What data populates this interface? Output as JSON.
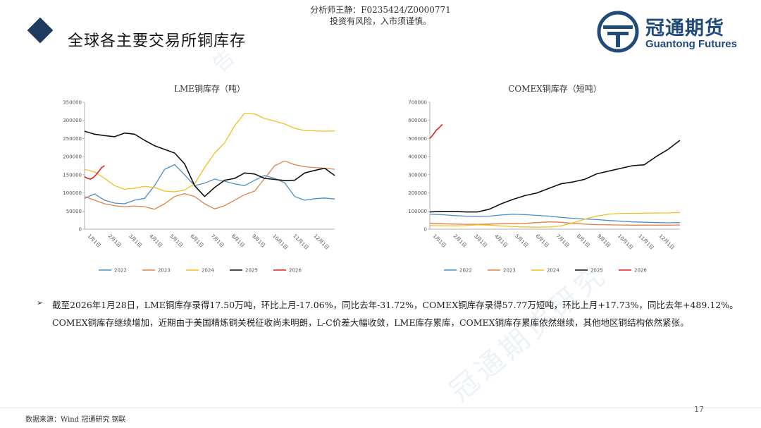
{
  "header": {
    "analyst_line1": "分析师王静：F0235424/Z0000771",
    "analyst_line2": "投资有风险，入市须谨慎。",
    "title": "全球各主要交易所铜库存"
  },
  "logo": {
    "cn": "冠通期货",
    "en": "Guantong Futures",
    "color": "#1f4a7a"
  },
  "summary": "截至2026年1月28日，LME铜库存录得17.50万吨，环比上月-17.06%，同比去年-31.72%，COMEX铜库存录得57.77万短吨，环比上月+17.73%，同比去年+489.12%。COMEX铜库存继续增加，近期由于美国精炼铜关税征收尚未明朗，L-C价差大幅收敛，LME库存累库，COMEX铜库存累库依然继续，其他地区铜结构依然紧张。",
  "source": "数据来源：Wind 冠通研究 钢联",
  "page_number": "17",
  "watermark": "冠通期货研究",
  "chart_data": [
    {
      "id": "lme",
      "type": "line",
      "title": "LME铜库存（吨）",
      "x_labels": [
        "1月1日",
        "2月1日",
        "3月1日",
        "4月1日",
        "5月1日",
        "6月1日",
        "7月1日",
        "8月1日",
        "9月1日",
        "10月1日",
        "11月1日",
        "12月1日"
      ],
      "ylim": [
        0,
        350000
      ],
      "yticks": [
        0,
        50000,
        100000,
        150000,
        200000,
        250000,
        300000,
        350000
      ],
      "legend_position": "bottom",
      "series": [
        {
          "name": "2022",
          "color": "#4f8fc6",
          "values": [
            85000,
            97000,
            80000,
            72000,
            70000,
            80000,
            85000,
            120000,
            165000,
            178000,
            150000,
            120000,
            127000,
            138000,
            132000,
            125000,
            120000,
            135000,
            148000,
            140000,
            128000,
            90000,
            80000,
            84000,
            86000,
            83000
          ]
        },
        {
          "name": "2023",
          "color": "#e0804a",
          "values": [
            90000,
            80000,
            70000,
            65000,
            62000,
            64000,
            62000,
            55000,
            70000,
            90000,
            98000,
            90000,
            70000,
            56000,
            65000,
            80000,
            95000,
            105000,
            140000,
            175000,
            188000,
            178000,
            172000,
            170000,
            168000,
            165000
          ]
        },
        {
          "name": "2024",
          "color": "#f0c020",
          "values": [
            165000,
            158000,
            140000,
            120000,
            110000,
            113000,
            118000,
            115000,
            105000,
            103000,
            108000,
            125000,
            170000,
            210000,
            238000,
            285000,
            320000,
            318000,
            305000,
            298000,
            290000,
            278000,
            272000,
            271000,
            270000,
            271000
          ]
        },
        {
          "name": "2025",
          "color": "#111111",
          "values": [
            270000,
            262000,
            258000,
            255000,
            265000,
            262000,
            245000,
            230000,
            220000,
            210000,
            180000,
            120000,
            90000,
            115000,
            135000,
            140000,
            155000,
            152000,
            140000,
            137000,
            134000,
            135000,
            155000,
            162000,
            168000,
            148000
          ]
        },
        {
          "name": "2026",
          "color": "#e02020",
          "values": [
            145000,
            140000,
            138000,
            142000,
            150000,
            160000,
            170000,
            175000
          ]
        }
      ]
    },
    {
      "id": "comex",
      "type": "line",
      "title": "COMEX铜库存（短吨）",
      "x_labels": [
        "1月1日",
        "2月1日",
        "3月1日",
        "4月1日",
        "5月1日",
        "6月1日",
        "7月1日",
        "8月1日",
        "9月1日",
        "10月1日",
        "11月1日",
        "12月1日"
      ],
      "ylim": [
        0,
        700000
      ],
      "yticks": [
        0,
        100000,
        200000,
        300000,
        400000,
        500000,
        600000,
        700000
      ],
      "legend_position": "bottom",
      "series": [
        {
          "name": "2022",
          "color": "#4f8fc6",
          "values": [
            82000,
            80000,
            75000,
            72000,
            70000,
            72000,
            78000,
            82000,
            80000,
            76000,
            72000,
            65000,
            60000,
            56000,
            53000,
            48000,
            44000,
            40000,
            38000,
            36000,
            35000,
            36000
          ]
        },
        {
          "name": "2023",
          "color": "#e0804a",
          "values": [
            32000,
            30000,
            28000,
            27000,
            27000,
            28000,
            30000,
            30000,
            32000,
            36000,
            40000,
            38000,
            32000,
            28000,
            25000,
            24000,
            23000,
            22000,
            22000,
            22000,
            22000,
            23000
          ]
        },
        {
          "name": "2024",
          "color": "#f0c020",
          "values": [
            20000,
            19000,
            18000,
            20000,
            24000,
            22000,
            18000,
            14000,
            12000,
            11000,
            12000,
            18000,
            35000,
            55000,
            72000,
            82000,
            87000,
            88000,
            88000,
            89000,
            90000,
            92000
          ]
        },
        {
          "name": "2025",
          "color": "#111111",
          "values": [
            95000,
            98000,
            98000,
            95000,
            95000,
            110000,
            140000,
            165000,
            185000,
            200000,
            225000,
            250000,
            260000,
            275000,
            305000,
            320000,
            335000,
            350000,
            355000,
            400000,
            440000,
            490000
          ]
        },
        {
          "name": "2026",
          "color": "#e02020",
          "values": [
            500000,
            520000,
            545000,
            560000,
            578000
          ]
        }
      ]
    }
  ]
}
